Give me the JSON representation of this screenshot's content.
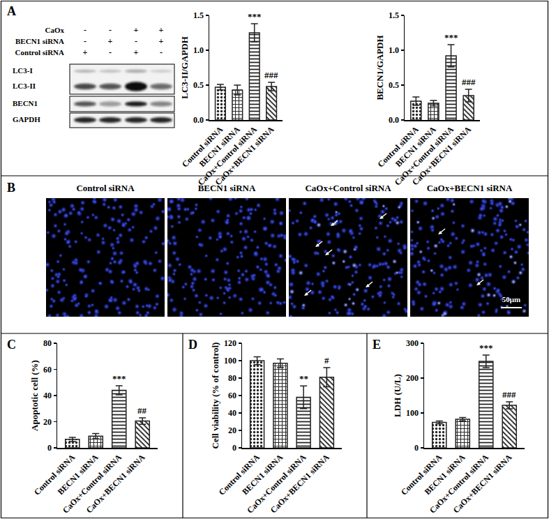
{
  "panel_labels": [
    "A",
    "B",
    "C",
    "D",
    "E"
  ],
  "blot": {
    "conditions": [
      {
        "label": "CaOx",
        "signs": [
          "-",
          "-",
          "+",
          "+"
        ]
      },
      {
        "label": "BECN1 siRNA",
        "signs": [
          "-",
          "+",
          "-",
          "+"
        ]
      },
      {
        "label": "Control siRNA",
        "signs": [
          "+",
          "-",
          "+",
          "-"
        ]
      }
    ],
    "bands": [
      "LC3-I",
      "LC3-II",
      "BECN1",
      "GAPDH"
    ]
  },
  "images": {
    "titles": [
      "Control siRNA",
      "BECN1 siRNA",
      "CaOx+Control siRNA",
      "CaOx+BECN1 siRNA"
    ],
    "scale_bar": "50μm"
  },
  "chart_data": [
    {
      "type": "bar",
      "y_label": "LC3-II/GAPDH",
      "categories": [
        "Control siRNA",
        "BECN1 siRNA",
        "CaOx+Control siRNA",
        "CaOx+BECN1 siRNA"
      ],
      "values": [
        0.47,
        0.43,
        1.25,
        0.48
      ],
      "errors": [
        0.04,
        0.07,
        0.13,
        0.06
      ],
      "annotations": [
        {
          "category": "CaOx+Control siRNA",
          "text": "***"
        },
        {
          "category": "CaOx+BECN1 siRNA",
          "text": "###"
        }
      ],
      "ylim": [
        0,
        1.5
      ],
      "yticks": [
        {
          "value": 0,
          "label": "0.0"
        },
        0.5,
        {
          "value": 1,
          "label": "1.0"
        },
        1.5
      ],
      "color": "#222222",
      "grid": false
    },
    {
      "type": "bar",
      "y_label": "BECN1/GAPDH",
      "categories": [
        "Control siRNA",
        "BECN1 siRNA",
        "CaOx+Control siRNA",
        "CaOx+BECN1 siRNA"
      ],
      "values": [
        0.27,
        0.24,
        0.92,
        0.35
      ],
      "errors": [
        0.06,
        0.04,
        0.16,
        0.09
      ],
      "annotations": [
        {
          "category": "CaOx+Control siRNA",
          "text": "***"
        },
        {
          "category": "CaOx+BECN1 siRNA",
          "text": "###"
        }
      ],
      "ylim": [
        0,
        1.5
      ],
      "yticks": [
        {
          "value": 0,
          "label": "0.0"
        },
        0.5,
        {
          "value": 1,
          "label": "1.0"
        },
        1.5
      ],
      "color": "#222222",
      "grid": false
    },
    {
      "type": "bar",
      "y_label": "Apoptotic cell (%)",
      "categories": [
        "Control siRNA",
        "BECN1 siRNA",
        "CaOx+Control siRNA",
        "CaOx+BECN1 siRNA"
      ],
      "values": [
        6.5,
        9,
        44,
        20.5
      ],
      "errors": [
        1.5,
        2,
        3.5,
        2.5
      ],
      "annotations": [
        {
          "category": "CaOx+Control siRNA",
          "text": "***"
        },
        {
          "category": "CaOx+BECN1 siRNA",
          "text": "##"
        }
      ],
      "ylim": [
        0,
        80
      ],
      "yticks": [
        0,
        20,
        40,
        60,
        80
      ],
      "color": "#222222",
      "grid": false
    },
    {
      "type": "bar",
      "y_label": "Cell viability (% of control)",
      "categories": [
        "Control siRNA",
        "BECN1 siRNA",
        "CaOx+Control siRNA",
        "CaOx+BECN1 siRNA"
      ],
      "values": [
        100,
        97,
        58,
        81
      ],
      "errors": [
        4.5,
        5,
        13,
        11
      ],
      "annotations": [
        {
          "category": "CaOx+Control siRNA",
          "text": "**"
        },
        {
          "category": "CaOx+BECN1 siRNA",
          "text": "#"
        }
      ],
      "ylim": [
        0,
        120
      ],
      "yticks": [
        0,
        20,
        40,
        60,
        80,
        100,
        120
      ],
      "color": "#222222",
      "grid": false
    },
    {
      "type": "bar",
      "y_label": "LDH (U/L)",
      "categories": [
        "Control siRNA",
        "BECN1 siRNA",
        "CaOx+Control siRNA",
        "CaOx+BECN1 siRNA"
      ],
      "values": [
        73,
        82,
        248,
        122
      ],
      "errors": [
        4,
        5,
        18,
        10
      ],
      "annotations": [
        {
          "category": "CaOx+Control siRNA",
          "text": "***"
        },
        {
          "category": "CaOx+BECN1 siRNA",
          "text": "###"
        }
      ],
      "ylim": [
        0,
        300
      ],
      "yticks": [
        0,
        100,
        200,
        300
      ],
      "color": "#222222",
      "grid": false
    }
  ]
}
